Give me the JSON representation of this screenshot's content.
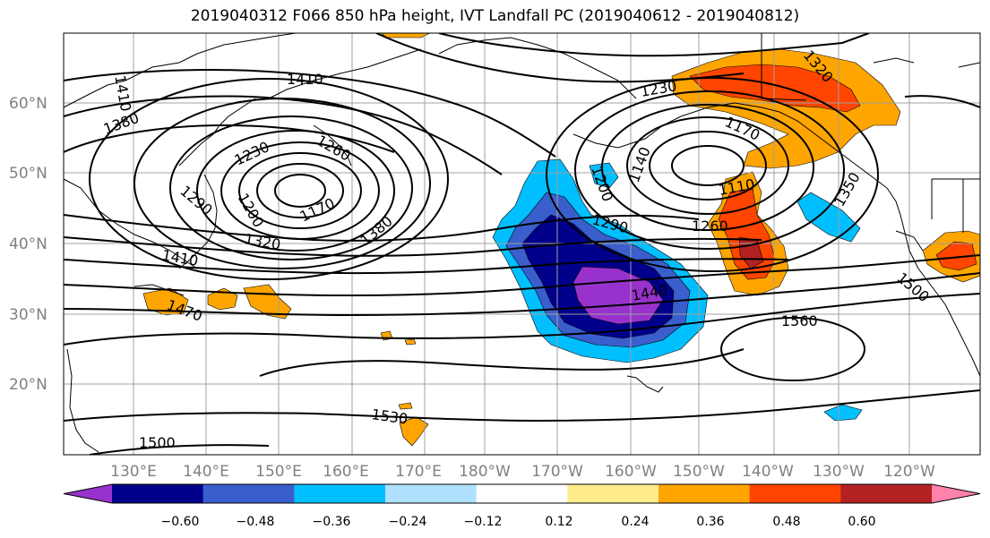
{
  "title": "2019040312 F066 850 hPa height, IVT Landfall PC (2019040612 - 2019040812)",
  "lat_labels": [
    "60°N",
    "50°N",
    "40°N",
    "30°N",
    "20°N"
  ],
  "lon_labels": [
    "130°E",
    "140°E",
    "150°E",
    "160°E",
    "170°E",
    "180°W",
    "170°W",
    "160°W",
    "150°W",
    "140°W",
    "130°W",
    "120°W"
  ],
  "colorbar": {
    "colors": [
      "#9932cc",
      "#00008b",
      "#3a5fcd",
      "#00bfff",
      "#b0e2ff",
      "#ffffff",
      "#ffec8b",
      "#ffa500",
      "#ff4500",
      "#b22222",
      "#ff82ab"
    ],
    "tick_labels": [
      "−0.60",
      "−0.48",
      "−0.36",
      "−0.24",
      "−0.12",
      "0.12",
      "0.24",
      "0.36",
      "0.48",
      "0.60"
    ]
  },
  "contour_labels": [
    "1410",
    "1410",
    "1380",
    "1230",
    "1260",
    "1290",
    "1200",
    "1170",
    "1320",
    "1410",
    "1470",
    "1380",
    "1230",
    "1320",
    "1170",
    "1140",
    "1200",
    "1110",
    "1290",
    "1260",
    "1350",
    "1440",
    "1560",
    "1500",
    "1530",
    "1500"
  ]
}
